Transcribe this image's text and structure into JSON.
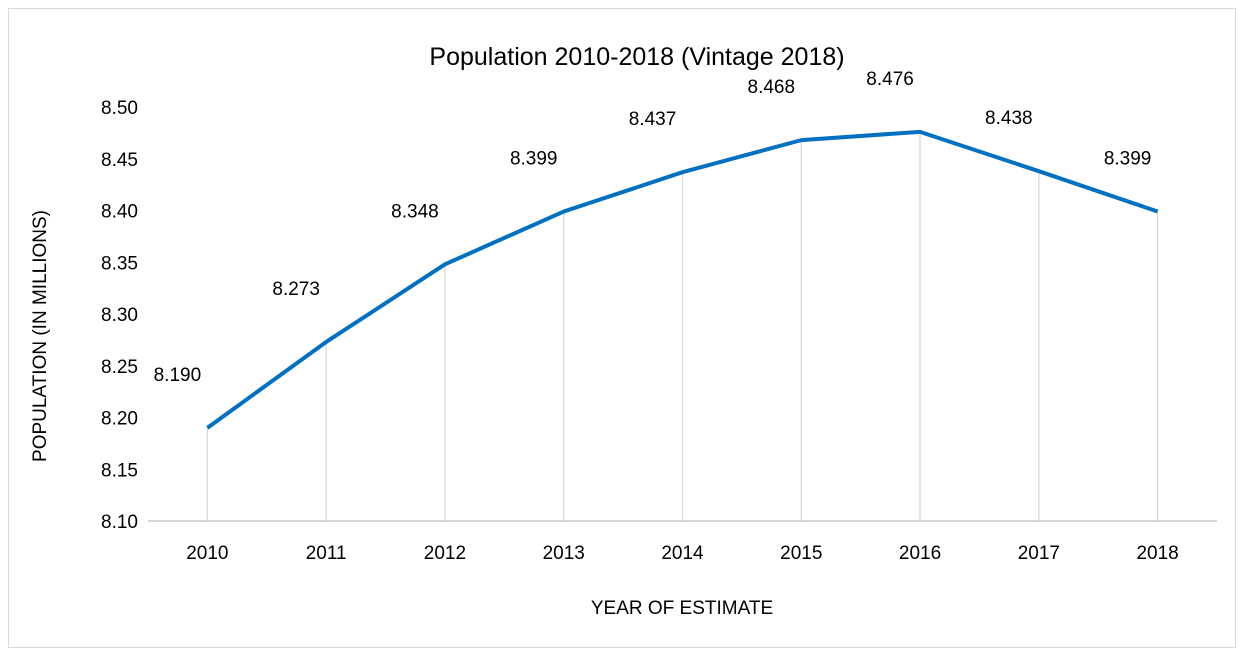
{
  "chart_data": {
    "type": "line",
    "title": "Population 2010-2018 (Vintage 2018)",
    "xlabel": "YEAR OF ESTIMATE",
    "ylabel": "POPULATION (IN MILLIONS)",
    "categories": [
      "2010",
      "2011",
      "2012",
      "2013",
      "2014",
      "2015",
      "2016",
      "2017",
      "2018"
    ],
    "series": [
      {
        "name": "",
        "values": [
          8.19,
          8.273,
          8.348,
          8.399,
          8.437,
          8.468,
          8.476,
          8.438,
          8.399
        ]
      }
    ],
    "data_labels": [
      "8.190",
      "8.273",
      "8.348",
      "8.399",
      "8.437",
      "8.468",
      "8.476",
      "8.438",
      "8.399"
    ],
    "ylim": [
      8.1,
      8.5
    ],
    "yticks": [
      "8.10",
      "8.15",
      "8.20",
      "8.25",
      "8.30",
      "8.35",
      "8.40",
      "8.45",
      "8.50"
    ],
    "grid": "vertical drop lines",
    "legend": "none",
    "colors": {
      "line": "#0070c0",
      "gridline": "#d9d9d9",
      "axis": "#bfbfbf"
    }
  }
}
